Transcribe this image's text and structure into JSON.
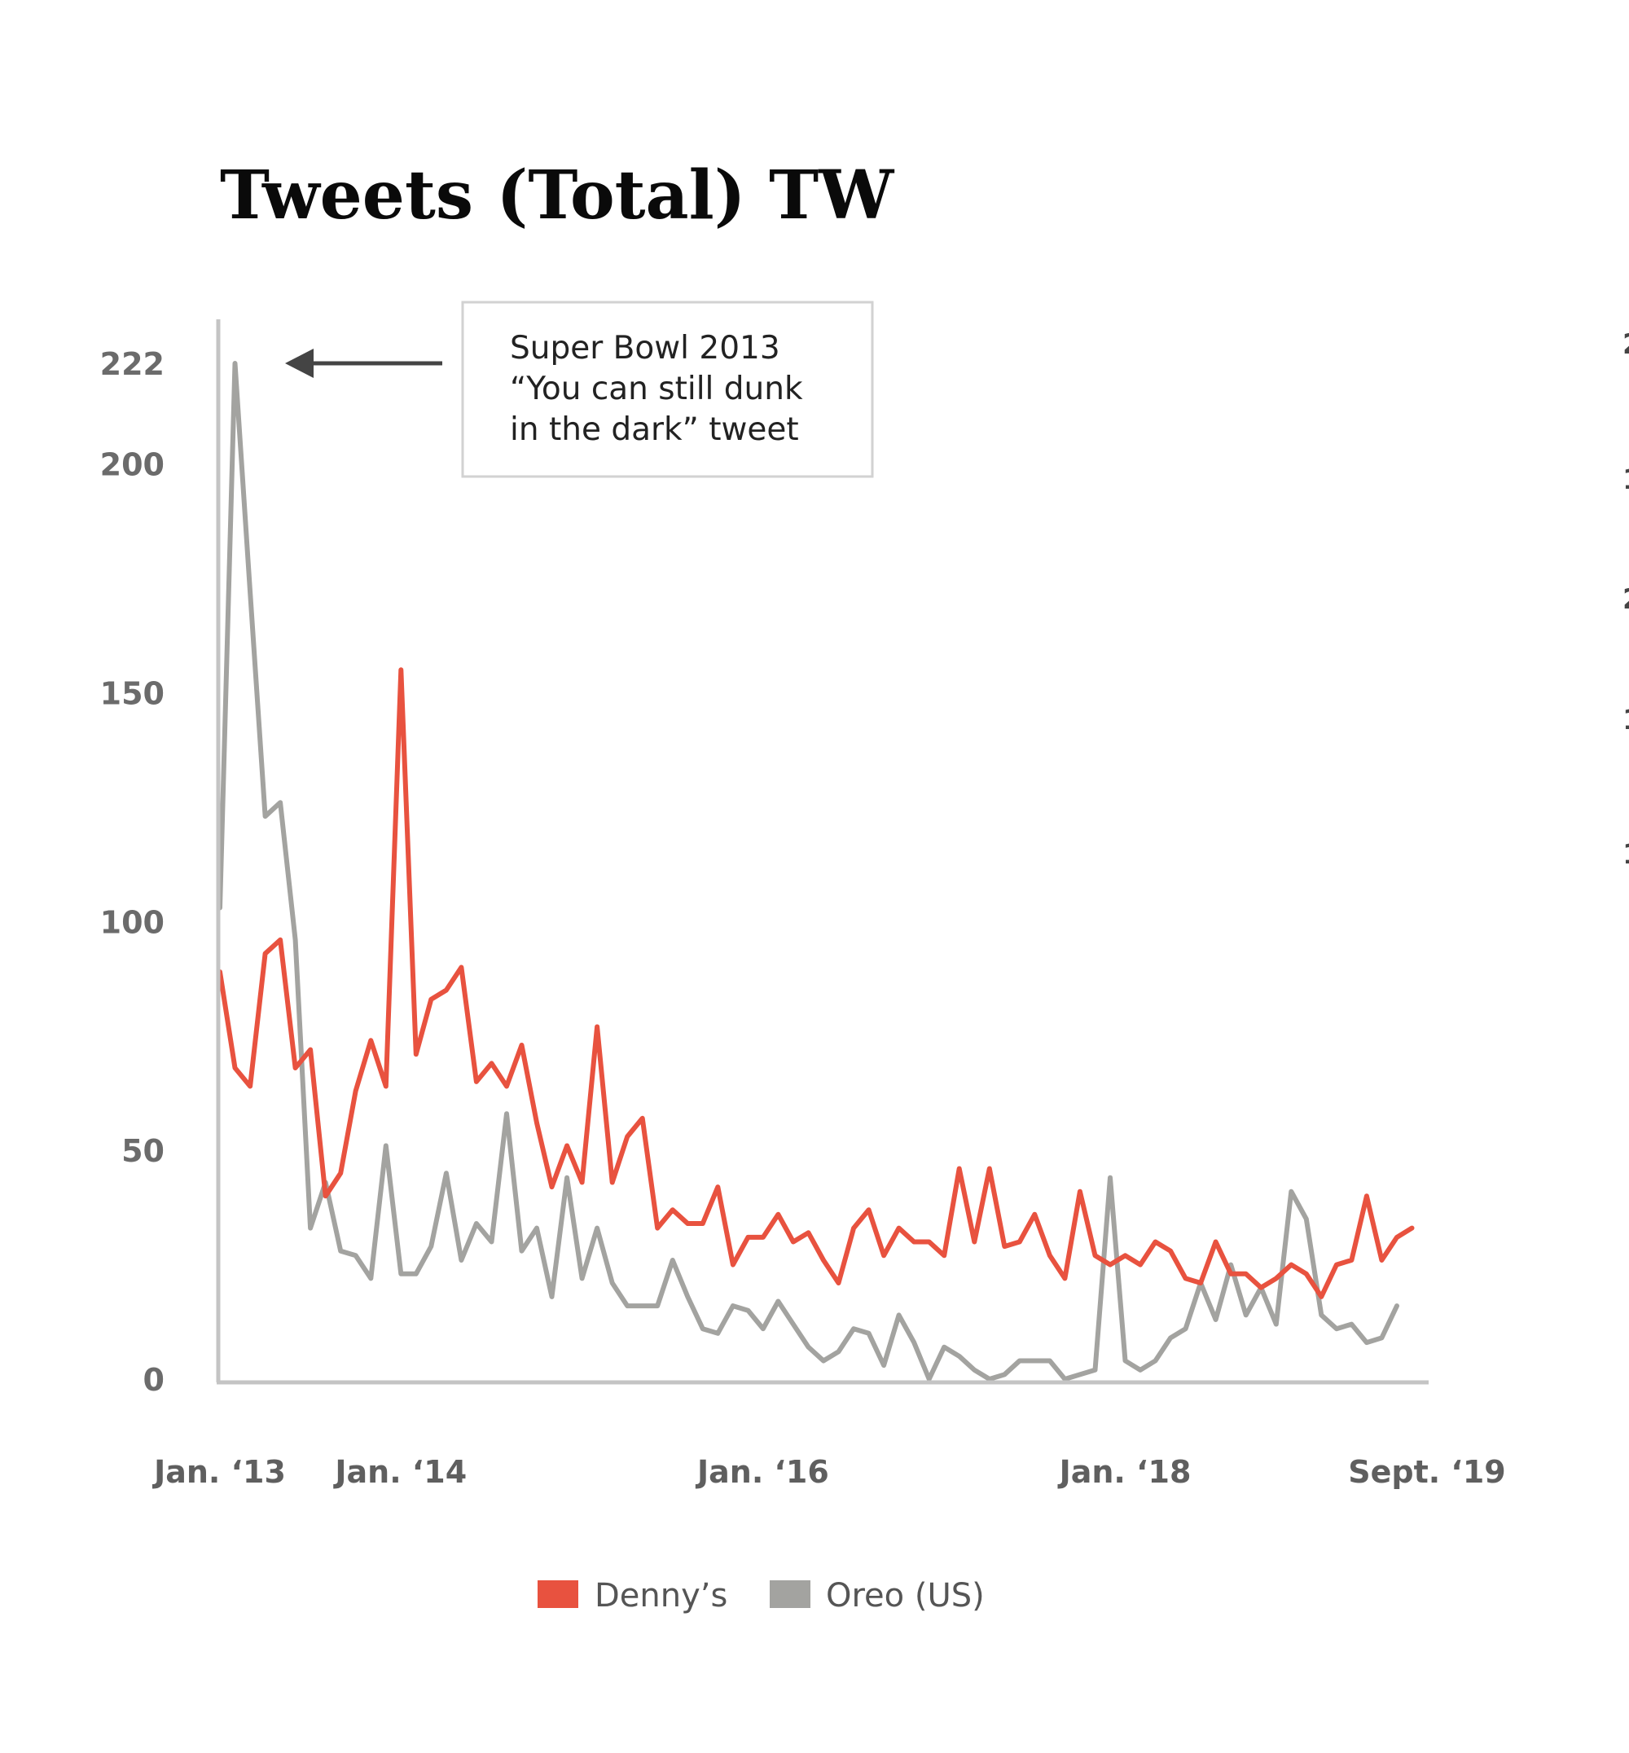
{
  "chart_data": {
    "type": "line",
    "title": "Tweets (Total) TW",
    "xlabel": "",
    "ylabel": "",
    "ylim": [
      0,
      222
    ],
    "xlim": [
      0,
      80
    ],
    "yticks": [
      0,
      50,
      100,
      150,
      200,
      222
    ],
    "xticks": [
      {
        "label": "Jan. ‘13",
        "x": 0
      },
      {
        "label": "Jan. ‘14",
        "x": 12
      },
      {
        "label": "Jan. ‘16",
        "x": 36
      },
      {
        "label": "Jan. ‘18",
        "x": 60
      },
      {
        "label": "Sept. ‘19",
        "x": 80
      }
    ],
    "x": [
      0,
      1,
      2,
      3,
      4,
      5,
      6,
      7,
      8,
      9,
      10,
      11,
      12,
      13,
      14,
      15,
      16,
      17,
      18,
      19,
      20,
      21,
      22,
      23,
      24,
      25,
      26,
      27,
      28,
      29,
      30,
      31,
      32,
      33,
      34,
      35,
      36,
      37,
      38,
      39,
      40,
      41,
      42,
      43,
      44,
      45,
      46,
      47,
      48,
      49,
      50,
      51,
      52,
      53,
      54,
      55,
      56,
      57,
      58,
      59,
      60,
      61,
      62,
      63,
      64,
      65,
      66,
      67,
      68,
      69,
      70,
      71,
      72,
      73,
      74,
      75,
      76,
      77,
      78,
      79,
      80
    ],
    "series": [
      {
        "name": "Denny’s",
        "color": "#e8523f",
        "values": [
          89,
          68,
          64,
          93,
          96,
          68,
          72,
          40,
          45,
          63,
          74,
          64,
          155,
          71,
          83,
          85,
          90,
          65,
          69,
          64,
          73,
          56,
          42,
          51,
          43,
          77,
          43,
          53,
          57,
          33,
          37,
          34,
          34,
          42,
          25,
          31,
          31,
          36,
          30,
          32,
          26,
          21,
          33,
          37,
          27,
          33,
          30,
          30,
          27,
          46,
          30,
          46,
          29,
          30,
          36,
          27,
          22,
          41,
          27,
          25,
          27,
          25,
          30,
          28,
          22,
          21,
          30,
          23,
          23,
          20,
          22,
          25,
          23,
          18,
          25,
          26,
          40,
          26,
          31,
          33,
          null
        ],
        "label_points": []
      },
      {
        "name": "Oreo (US)",
        "color": "#a3a3a0",
        "values": [
          103,
          222,
          172,
          123,
          126,
          96,
          33,
          43,
          28,
          27,
          22,
          51,
          23,
          23,
          29,
          45,
          26,
          34,
          30,
          58,
          28,
          33,
          18,
          44,
          22,
          33,
          21,
          16,
          16,
          16,
          26,
          18,
          11,
          10,
          16,
          15,
          11,
          17,
          12,
          7,
          4,
          6,
          11,
          10,
          3,
          14,
          8,
          0,
          7,
          5,
          2,
          0,
          1,
          4,
          4,
          4,
          0,
          1,
          2,
          44,
          4,
          2,
          4,
          9,
          11,
          21,
          13,
          25,
          14,
          20,
          12,
          41,
          35,
          14,
          11,
          12,
          8,
          9,
          16,
          null,
          null
        ]
      }
    ],
    "annotation": {
      "lines": [
        "Super Bowl 2013",
        "“You can still dunk",
        "in the dark” tweet"
      ],
      "points_to_value": 222
    },
    "legend": {
      "placement": "bottom-center",
      "items": [
        {
          "label": "Denny’s",
          "color": "#e8523f"
        },
        {
          "label": "Oreo (US)",
          "color": "#a3a3a0"
        }
      ]
    },
    "edge_fragments": [
      "2",
      "1",
      "2",
      "1",
      "1"
    ],
    "axis_color": "#c4c4c4",
    "arrow_color": "#444444"
  }
}
